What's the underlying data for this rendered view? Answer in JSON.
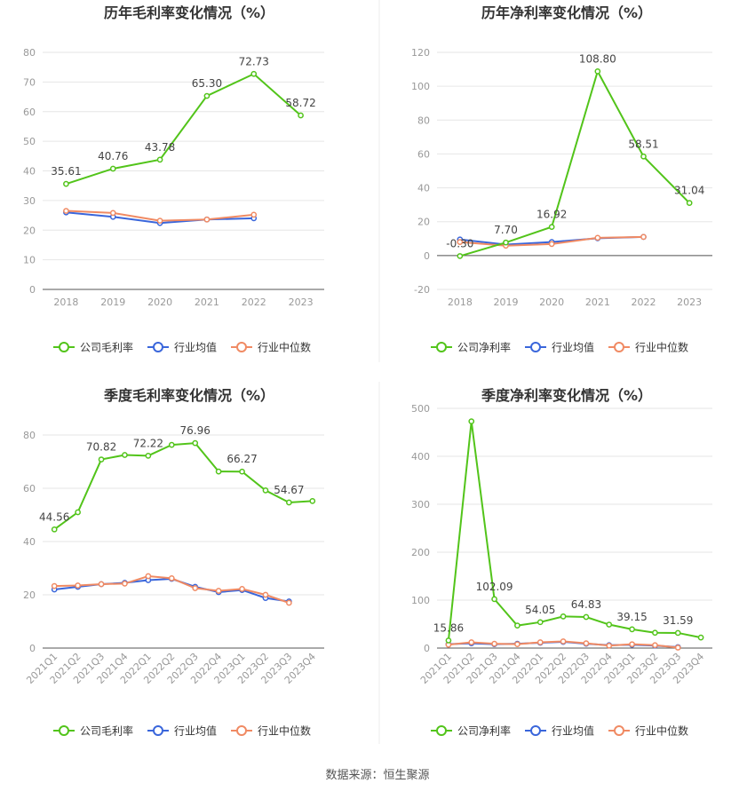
{
  "colors": {
    "company": "#52c41a",
    "avg": "#3a66db",
    "median": "#f08a63",
    "grid": "#e6e6e6",
    "axis": "#999999",
    "text": "#666666",
    "title": "#333333"
  },
  "source_text": "数据来源：恒生聚源",
  "chart_data": [
    {
      "type": "line",
      "title": "历年毛利率变化情况（%）",
      "categories": [
        "2018",
        "2019",
        "2020",
        "2021",
        "2022",
        "2023"
      ],
      "ylim": [
        0,
        80
      ],
      "yticks": [
        0,
        10,
        20,
        30,
        40,
        50,
        60,
        70,
        80
      ],
      "series": [
        {
          "name": "公司毛利率",
          "role": "company",
          "values": [
            35.61,
            40.76,
            43.78,
            65.3,
            72.73,
            58.72
          ],
          "labels": [
            "35.61",
            "40.76",
            "43.78",
            "65.30",
            "72.73",
            "58.72"
          ]
        },
        {
          "name": "行业均值",
          "role": "avg",
          "values": [
            26.0,
            24.5,
            22.4,
            23.6,
            24.0,
            null
          ]
        },
        {
          "name": "行业中位数",
          "role": "median",
          "values": [
            26.5,
            25.8,
            23.2,
            23.6,
            25.2,
            null
          ]
        }
      ]
    },
    {
      "type": "line",
      "title": "历年净利率变化情况（%）",
      "categories": [
        "2018",
        "2019",
        "2020",
        "2021",
        "2022",
        "2023"
      ],
      "ylim": [
        -20,
        120
      ],
      "yticks": [
        -20,
        0,
        20,
        40,
        60,
        80,
        100,
        120
      ],
      "series": [
        {
          "name": "公司净利率",
          "role": "company",
          "values": [
            -0.3,
            7.7,
            16.92,
            108.8,
            58.51,
            31.04
          ],
          "labels": [
            "-0.30",
            "7.70",
            "16.92",
            "108.80",
            "58.51",
            "31.04"
          ]
        },
        {
          "name": "行业均值",
          "role": "avg",
          "values": [
            9.5,
            6.5,
            8.0,
            10.2,
            11.0,
            null
          ]
        },
        {
          "name": "行业中位数",
          "role": "median",
          "values": [
            8.0,
            5.8,
            6.8,
            10.5,
            11.0,
            null
          ]
        }
      ]
    },
    {
      "type": "line",
      "title": "季度毛利率变化情况（%）",
      "categories": [
        "2021Q1",
        "2021Q2",
        "2021Q3",
        "2021Q4",
        "2022Q1",
        "2022Q2",
        "2022Q3",
        "2022Q4",
        "2023Q1",
        "2023Q2",
        "2023Q3",
        "2023Q4"
      ],
      "ylim": [
        0,
        90
      ],
      "yticks": [
        0,
        20,
        40,
        60,
        80
      ],
      "series": [
        {
          "name": "公司毛利率",
          "role": "company",
          "values": [
            44.56,
            51.0,
            70.82,
            72.5,
            72.22,
            76.3,
            76.96,
            66.3,
            66.27,
            59.2,
            54.67,
            55.2
          ],
          "labels": [
            "44.56",
            "",
            "70.82",
            "",
            "72.22",
            "",
            "76.96",
            "",
            "66.27",
            "",
            "54.67",
            ""
          ]
        },
        {
          "name": "行业均值",
          "role": "avg",
          "values": [
            22.0,
            23.0,
            24.0,
            24.5,
            25.5,
            26.0,
            23.0,
            21.0,
            21.8,
            18.8,
            17.5,
            null
          ]
        },
        {
          "name": "行业中位数",
          "role": "median",
          "values": [
            23.3,
            23.5,
            24.0,
            24.2,
            27.0,
            26.2,
            22.5,
            21.5,
            22.2,
            20.0,
            17.0,
            null
          ]
        }
      ]
    },
    {
      "type": "line",
      "title": "季度净利率变化情况（%）",
      "categories": [
        "2021Q1",
        "2021Q2",
        "2021Q3",
        "2021Q4",
        "2022Q1",
        "2022Q2",
        "2022Q3",
        "2022Q4",
        "2023Q1",
        "2023Q2",
        "2023Q3",
        "2023Q4"
      ],
      "ylim": [
        0,
        500
      ],
      "yticks": [
        0,
        100,
        200,
        300,
        400,
        500
      ],
      "series": [
        {
          "name": "公司净利率",
          "role": "company",
          "values": [
            15.86,
            473.0,
            102.09,
            47.0,
            54.05,
            66.0,
            64.83,
            49.0,
            39.15,
            32.0,
            31.59,
            22.0
          ],
          "labels": [
            "15.86",
            "",
            "102.09",
            "",
            "54.05",
            "",
            "64.83",
            "",
            "39.15",
            "",
            "31.59",
            ""
          ]
        },
        {
          "name": "行业均值",
          "role": "avg",
          "values": [
            8.0,
            10.0,
            8.0,
            9.0,
            11.0,
            13.0,
            9.0,
            6.0,
            7.0,
            5.0,
            2.0,
            null
          ]
        },
        {
          "name": "行业中位数",
          "role": "median",
          "values": [
            7.0,
            12.0,
            9.0,
            8.0,
            12.0,
            14.0,
            10.0,
            5.0,
            8.0,
            6.0,
            1.0,
            null
          ]
        }
      ]
    }
  ]
}
